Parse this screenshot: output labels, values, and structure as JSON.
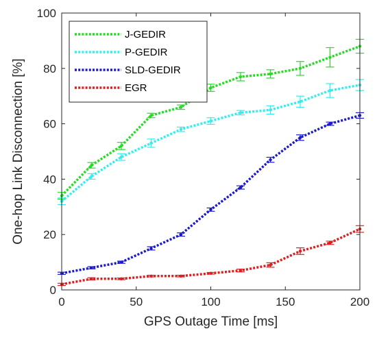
{
  "chart_data": {
    "type": "line",
    "xlabel": "GPS Outage Time  [ms]",
    "ylabel": "One-hop Link Disconnection [%]",
    "xlim": [
      0,
      200
    ],
    "ylim": [
      0,
      100
    ],
    "xticks": [
      "0",
      "50",
      "100",
      "150",
      "200"
    ],
    "yticks": [
      "0",
      "20",
      "40",
      "60",
      "80",
      "100"
    ],
    "x": [
      0,
      20,
      40,
      60,
      80,
      100,
      120,
      140,
      160,
      180,
      200
    ],
    "legend_position": "top-left",
    "grid": false,
    "series": [
      {
        "name": "J-GEDIR",
        "color": "#22dd22",
        "values": [
          34,
          45,
          52,
          63,
          66,
          73,
          77,
          78,
          80,
          84,
          88
        ],
        "errors": [
          1.2,
          1.0,
          1.3,
          0.8,
          0.8,
          1.3,
          1.5,
          1.5,
          2.5,
          3.5,
          2.5
        ]
      },
      {
        "name": "P-GEDIR",
        "color": "#33eeee",
        "values": [
          32,
          41,
          48,
          53,
          58,
          61,
          64,
          65,
          68,
          72,
          74
        ],
        "errors": [
          1.2,
          1.0,
          1.2,
          1.5,
          0.8,
          1.2,
          0.8,
          1.5,
          2.0,
          2.5,
          2.0
        ]
      },
      {
        "name": "SLD-GEDIR",
        "color": "#1a1acc",
        "values": [
          6,
          8,
          10,
          15,
          20,
          29,
          37,
          47,
          55,
          60,
          63
        ],
        "errors": [
          0.4,
          0.4,
          0.4,
          0.6,
          0.6,
          0.6,
          0.6,
          0.9,
          1.0,
          0.6,
          1.0
        ]
      },
      {
        "name": "EGR",
        "color": "#dd1f1f",
        "values": [
          2,
          4,
          4,
          5,
          5,
          6,
          7,
          9,
          14,
          17,
          22
        ],
        "errors": [
          0.4,
          0.4,
          0.3,
          0.3,
          0.3,
          0.3,
          0.5,
          0.8,
          1.2,
          0.6,
          1.2
        ]
      }
    ]
  }
}
